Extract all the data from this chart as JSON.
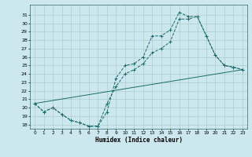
{
  "xlabel": "Humidex (Indice chaleur)",
  "bg_color": "#cce8ee",
  "grid_color": "#aacccc",
  "line_color": "#1a6b6b",
  "xlim": [
    -0.5,
    23.5
  ],
  "ylim": [
    17.5,
    32.2
  ],
  "xticks": [
    0,
    1,
    2,
    3,
    4,
    5,
    6,
    7,
    8,
    9,
    10,
    11,
    12,
    13,
    14,
    15,
    16,
    17,
    18,
    19,
    20,
    21,
    22,
    23
  ],
  "yticks": [
    18,
    19,
    20,
    21,
    22,
    23,
    24,
    25,
    26,
    27,
    28,
    29,
    30,
    31
  ],
  "s1x": [
    0,
    1,
    2,
    3,
    4,
    5,
    6,
    7,
    8,
    9,
    10,
    11,
    12,
    13,
    14,
    15,
    16,
    17,
    18,
    19,
    20,
    21,
    22,
    23
  ],
  "s1y": [
    20.5,
    19.5,
    20.0,
    19.2,
    18.5,
    18.2,
    17.8,
    17.8,
    19.5,
    23.5,
    25.0,
    25.2,
    26.0,
    28.5,
    28.5,
    29.2,
    31.3,
    30.8,
    30.8,
    28.5,
    26.2,
    25.0,
    24.8,
    24.5
  ],
  "s2x": [
    0,
    1,
    2,
    3,
    4,
    5,
    6,
    7,
    8,
    9,
    10,
    11,
    12,
    13,
    14,
    15,
    16,
    17,
    18,
    19,
    20,
    21,
    22,
    23
  ],
  "s2y": [
    20.5,
    19.5,
    20.0,
    19.2,
    18.5,
    18.2,
    17.8,
    17.8,
    20.5,
    22.5,
    24.0,
    24.5,
    25.2,
    26.5,
    27.0,
    27.8,
    30.5,
    30.5,
    30.8,
    28.5,
    26.2,
    25.0,
    24.8,
    24.5
  ],
  "s3x": [
    0,
    23
  ],
  "s3y": [
    20.5,
    24.5
  ]
}
